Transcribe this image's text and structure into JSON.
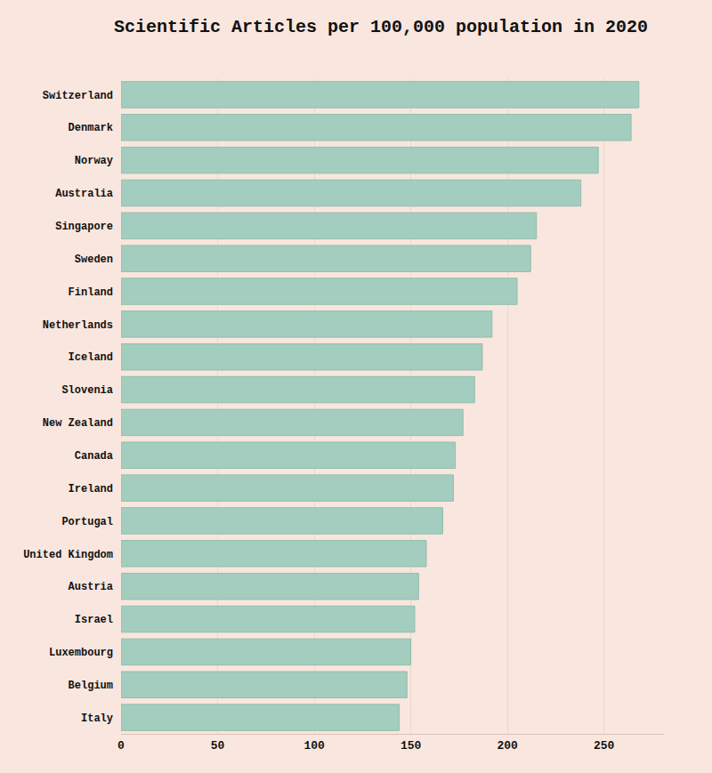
{
  "chart_data": {
    "type": "bar",
    "title": "Scientific Articles per 100,000 population in 2020",
    "orientation": "horizontal",
    "categories": [
      "Switzerland",
      "Denmark",
      "Norway",
      "Australia",
      "Singapore",
      "Sweden",
      "Finland",
      "Netherlands",
      "Iceland",
      "Slovenia",
      "New Zealand",
      "Canada",
      "Ireland",
      "Portugal",
      "United Kingdom",
      "Austria",
      "Israel",
      "Luxembourg",
      "Belgium",
      "Italy"
    ],
    "values": [
      268,
      264,
      247,
      238,
      215,
      212,
      205,
      192,
      187,
      183,
      177,
      173,
      172,
      166.5,
      158,
      154,
      152,
      150,
      148,
      144
    ],
    "color": "#a3cdbf",
    "xlim": [
      0,
      281
    ],
    "xticks": [
      0,
      50,
      100,
      150,
      200,
      250
    ],
    "grid": true
  }
}
